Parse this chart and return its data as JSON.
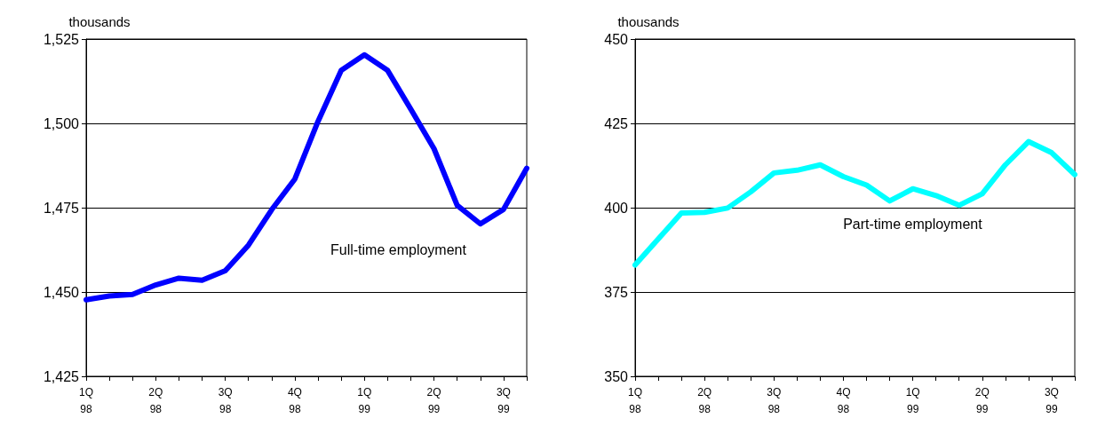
{
  "chart_data": [
    {
      "type": "line",
      "ylabel": "thousands",
      "categories": [
        "1Q\n98",
        null,
        null,
        "2Q\n98",
        null,
        null,
        "3Q\n98",
        null,
        null,
        "4Q\n98",
        null,
        null,
        "1Q\n99",
        null,
        null,
        "2Q\n99",
        null,
        null,
        "3Q\n99",
        null
      ],
      "series": [
        {
          "name": "Full-time employment",
          "color": "#0000ff",
          "values": [
            1447.7,
            1448.8,
            1449.3,
            1452.1,
            1454.1,
            1453.5,
            1456.3,
            1463.9,
            1474.4,
            1483.5,
            1500.6,
            1515.7,
            1520.3,
            1515.7,
            1504.2,
            1492.5,
            1475.7,
            1470.2,
            1474.5,
            1486.7
          ]
        }
      ],
      "ylim": [
        1425,
        1525
      ],
      "yticks": [
        {
          "value": 1425,
          "label": "1,425"
        },
        {
          "value": 1450,
          "label": "1,450"
        },
        {
          "value": 1475,
          "label": "1,475"
        },
        {
          "value": 1500,
          "label": "1,500"
        },
        {
          "value": 1525,
          "label": "1,525"
        }
      ],
      "grid": "y",
      "legend": false,
      "marker": "none",
      "line_style": "solid"
    },
    {
      "type": "line",
      "ylabel": "thousands",
      "categories": [
        "1Q\n98",
        null,
        null,
        "2Q\n98",
        null,
        null,
        "3Q\n98",
        null,
        null,
        "4Q\n98",
        null,
        null,
        "1Q\n99",
        null,
        null,
        "2Q\n99",
        null,
        null,
        "3Q\n99",
        null
      ],
      "series": [
        {
          "name": "Part-time employment",
          "color": "#00ffff",
          "values": [
            383.0,
            390.7,
            398.4,
            398.6,
            399.9,
            404.7,
            410.3,
            411.1,
            412.7,
            409.2,
            406.7,
            402.0,
            405.6,
            403.6,
            400.7,
            404.1,
            412.7,
            419.6,
            416.3,
            409.8
          ]
        }
      ],
      "ylim": [
        350,
        450
      ],
      "yticks": [
        350,
        375,
        400,
        425,
        450
      ],
      "grid": "y",
      "legend": false,
      "marker": "none",
      "line_style": "solid"
    }
  ]
}
